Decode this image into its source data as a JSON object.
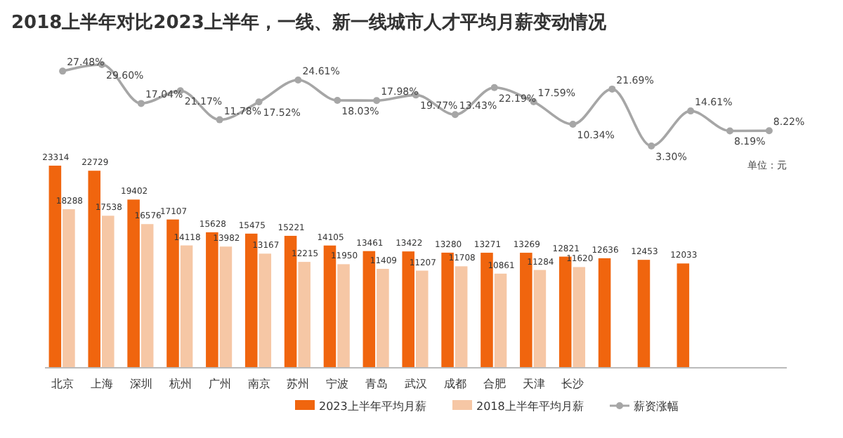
{
  "chart_data": [
    {
      "type": "line",
      "title": "2018上半年对比2023上半年，一线、新一线城市人才平均月薪变动情况",
      "categories": [
        null,
        null,
        null,
        null,
        null,
        null,
        null,
        null,
        null,
        null,
        null,
        null,
        null,
        null,
        null,
        null,
        null,
        null,
        null
      ],
      "series": [
        {
          "name": "薪资涨幅",
          "color": "#a6a6a6",
          "values": [
            27.48,
            29.6,
            17.04,
            21.17,
            11.78,
            17.52,
            24.61,
            18.03,
            17.98,
            19.77,
            13.43,
            22.19,
            17.59,
            10.34,
            21.69,
            3.3,
            14.61,
            8.19,
            8.22
          ],
          "value_labels": [
            "27.48%",
            "29.60%",
            "17.04%",
            "21.17%",
            "11.78%",
            "17.52%",
            "24.61%",
            "18.03%",
            "17.98%",
            "19.77%",
            "13.43%",
            "22.19%",
            "17.59%",
            "10.34%",
            "21.69%",
            "3.30%",
            "14.61%",
            "8.19%",
            "8.22%"
          ]
        }
      ],
      "marker": "circle",
      "legend": "bottom"
    },
    {
      "type": "bar",
      "categories": [
        "北京",
        "上海",
        "深圳",
        "杭州",
        "广州",
        "南京",
        "苏州",
        "宁波",
        "青岛",
        "武汉",
        "成都",
        "合肥",
        "天津",
        "长沙",
        null,
        null,
        null,
        null,
        null
      ],
      "series": [
        {
          "name": "2023上半年平均月薪",
          "color": "#f0650e",
          "values": [
            23314,
            22729,
            19402,
            17107,
            15628,
            15475,
            15221,
            14105,
            13461,
            13422,
            13280,
            13271,
            13269,
            12821,
            12636,
            12453,
            12033,
            null,
            null
          ]
        },
        {
          "name": "2018上半年平均月薪",
          "color": "#f6c7a5",
          "values": [
            18288,
            17538,
            16576,
            14118,
            13982,
            13167,
            12215,
            11950,
            11409,
            11207,
            11708,
            10861,
            11284,
            11620,
            null,
            null,
            null,
            null,
            null
          ]
        }
      ],
      "data_labels": true,
      "legend": "bottom",
      "annotations": [
        "单位：元"
      ]
    }
  ]
}
